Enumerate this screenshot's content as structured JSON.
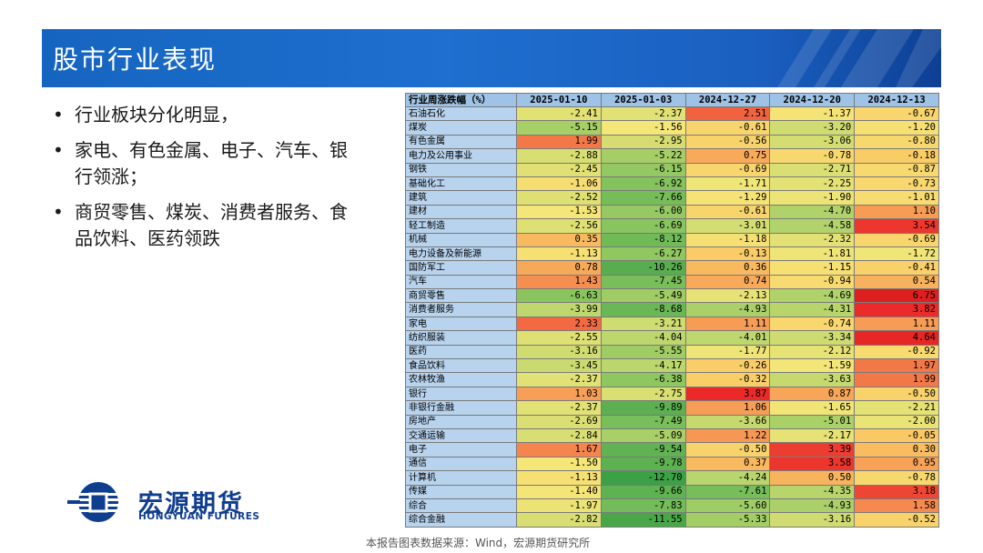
{
  "header": {
    "title": "股市行业表现",
    "brand_color": "#1565c0"
  },
  "bullets": [
    "行业板块分化明显，",
    "家电、有色金属、电子、汽车、银行领涨；",
    "商贸零售、煤炭、消费者服务、食品饮料、医药领跌"
  ],
  "table": {
    "header_name": "行业周涨跌幅（%）",
    "dates": [
      "2025-01-10",
      "2025-01-03",
      "2024-12-27",
      "2024-12-20",
      "2024-12-13"
    ],
    "rows": [
      {
        "name": "石油石化",
        "values": [
          -2.41,
          -2.37,
          2.51,
          -1.37,
          -0.67
        ]
      },
      {
        "name": "煤炭",
        "values": [
          -5.15,
          -1.56,
          -0.61,
          -3.2,
          -1.2
        ]
      },
      {
        "name": "有色金属",
        "values": [
          1.99,
          -2.95,
          -0.56,
          -3.06,
          -0.8
        ]
      },
      {
        "name": "电力及公用事业",
        "values": [
          -2.88,
          -5.22,
          0.75,
          -0.78,
          -0.18
        ]
      },
      {
        "name": "钢铁",
        "values": [
          -2.45,
          -6.15,
          -0.69,
          -2.71,
          -0.87
        ]
      },
      {
        "name": "基础化工",
        "values": [
          -1.06,
          -6.92,
          -1.71,
          -2.25,
          -0.73
        ]
      },
      {
        "name": "建筑",
        "values": [
          -2.52,
          -7.66,
          -1.29,
          -1.9,
          -1.01
        ]
      },
      {
        "name": "建材",
        "values": [
          -1.53,
          -6.0,
          -0.61,
          -4.7,
          1.1
        ]
      },
      {
        "name": "轻工制造",
        "values": [
          -2.56,
          -6.69,
          -3.01,
          -4.58,
          3.54
        ]
      },
      {
        "name": "机械",
        "values": [
          0.35,
          -8.12,
          -1.18,
          -2.32,
          -0.69
        ]
      },
      {
        "name": "电力设备及新能源",
        "values": [
          -1.13,
          -6.27,
          -0.13,
          -1.81,
          -1.72
        ]
      },
      {
        "name": "国防军工",
        "values": [
          0.78,
          -10.26,
          0.36,
          -1.15,
          -0.41
        ]
      },
      {
        "name": "汽车",
        "values": [
          1.43,
          -7.45,
          0.74,
          -0.94,
          0.54
        ]
      },
      {
        "name": "商贸零售",
        "values": [
          -6.63,
          -5.49,
          -2.13,
          -4.69,
          6.75
        ]
      },
      {
        "name": "消费者服务",
        "values": [
          -3.99,
          -8.68,
          -4.93,
          -4.31,
          3.82
        ]
      },
      {
        "name": "家电",
        "values": [
          2.33,
          -3.21,
          1.11,
          -0.74,
          1.11
        ]
      },
      {
        "name": "纺织服装",
        "values": [
          -2.55,
          -4.04,
          -4.01,
          -3.34,
          4.64
        ]
      },
      {
        "name": "医药",
        "values": [
          -3.16,
          -5.55,
          -1.77,
          -2.12,
          -0.92
        ]
      },
      {
        "name": "食品饮料",
        "values": [
          -3.45,
          -4.17,
          -0.26,
          -1.59,
          1.97
        ]
      },
      {
        "name": "农林牧渔",
        "values": [
          -2.37,
          -6.38,
          -0.32,
          -3.63,
          1.99
        ]
      },
      {
        "name": "银行",
        "values": [
          1.03,
          -2.75,
          3.87,
          0.87,
          -0.5
        ]
      },
      {
        "name": "非银行金融",
        "values": [
          -2.37,
          -9.89,
          1.06,
          -1.65,
          -2.21
        ]
      },
      {
        "name": "房地产",
        "values": [
          -2.69,
          -7.49,
          -3.66,
          -5.01,
          -2.0
        ]
      },
      {
        "name": "交通运输",
        "values": [
          -2.84,
          -5.09,
          1.22,
          -2.17,
          -0.05
        ]
      },
      {
        "name": "电子",
        "values": [
          1.67,
          -9.54,
          -0.5,
          3.39,
          0.3
        ]
      },
      {
        "name": "通信",
        "values": [
          -1.5,
          -9.78,
          0.37,
          3.58,
          0.95
        ]
      },
      {
        "name": "计算机",
        "values": [
          -1.13,
          -12.7,
          -4.24,
          0.5,
          -0.78
        ]
      },
      {
        "name": "传媒",
        "values": [
          -1.4,
          -9.66,
          -7.61,
          -4.35,
          3.18
        ]
      },
      {
        "name": "综合",
        "values": [
          -1.97,
          -7.83,
          -5.6,
          -4.93,
          1.58
        ]
      },
      {
        "name": "综合金融",
        "values": [
          -2.82,
          -11.55,
          -5.33,
          -3.16,
          -0.52
        ]
      }
    ]
  },
  "logo": {
    "name_cn": "宏源期货",
    "name_en": "HONGYUAN FUTURES",
    "color": "#103e8f"
  },
  "footer": {
    "source": "本报告图表数据来源：Wind，宏源期货研究所"
  }
}
